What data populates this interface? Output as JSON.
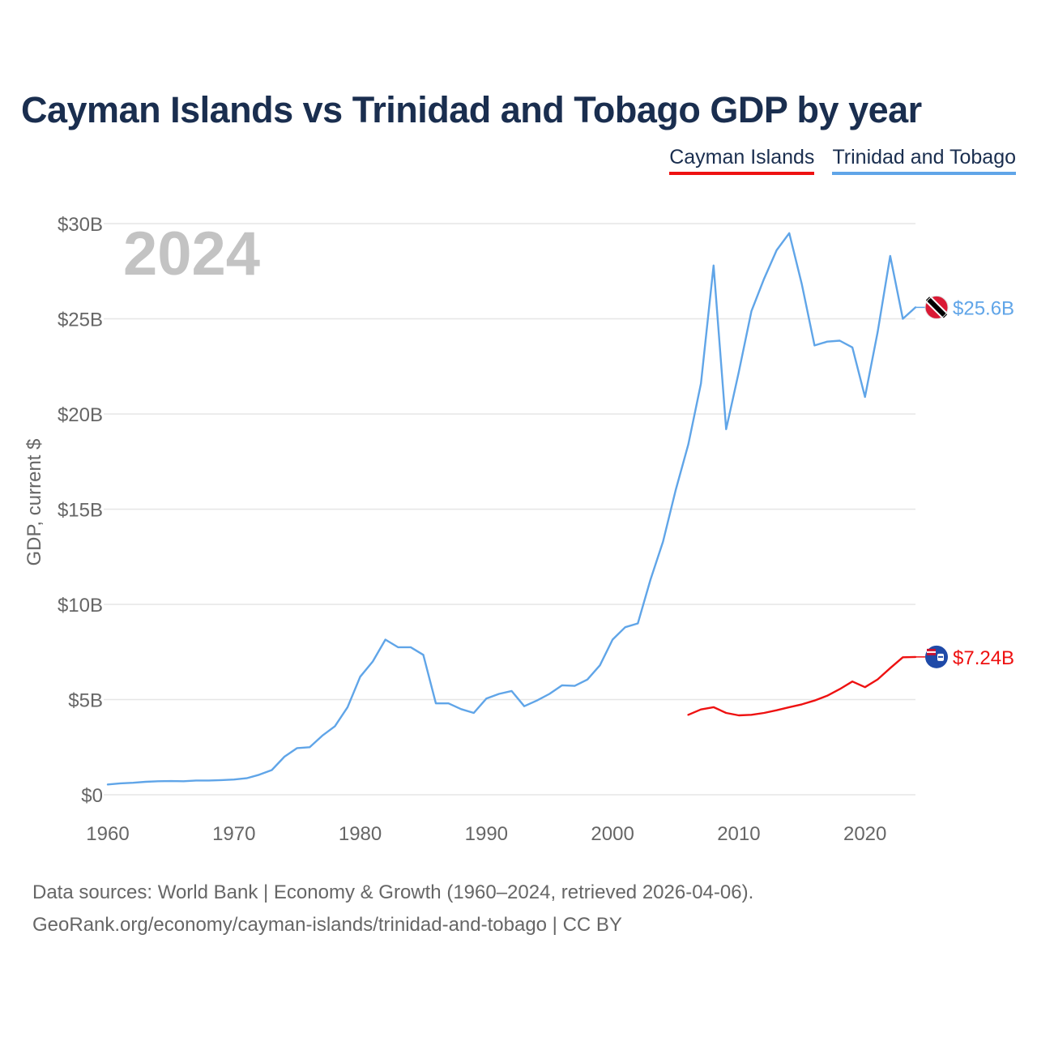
{
  "title": "Cayman Islands vs Trinidad and Tobago GDP by year",
  "legend": [
    {
      "label": "Cayman Islands",
      "color": "#ee1111"
    },
    {
      "label": "Trinidad and Tobago",
      "color": "#60a5e8"
    }
  ],
  "year_overlay": "2024",
  "source_line1": "Data sources: World Bank | Economy & Growth (1960–2024, retrieved 2026-04-06).",
  "source_line2": "GeoRank.org/economy/cayman-islands/trinidad-and-tobago | CC BY",
  "chart_data": {
    "type": "line",
    "title": "Cayman Islands vs Trinidad and Tobago GDP by year",
    "xlabel": "",
    "ylabel": "GDP, current $",
    "xlim": [
      1960,
      2024
    ],
    "ylim": [
      0,
      30
    ],
    "y_unit": "billion USD",
    "xticks": [
      1960,
      1970,
      1980,
      1990,
      2000,
      2010,
      2020
    ],
    "yticks": [
      0,
      5,
      10,
      15,
      20,
      25,
      30
    ],
    "ytick_labels": [
      "$0",
      "$5B",
      "$10B",
      "$15B",
      "$20B",
      "$25B",
      "$30B"
    ],
    "grid": true,
    "legend_position": "top-right",
    "series": [
      {
        "name": "Trinidad and Tobago",
        "color": "#60a5e8",
        "end_label": "$25.6B",
        "x": [
          1960,
          1961,
          1962,
          1963,
          1964,
          1965,
          1966,
          1967,
          1968,
          1969,
          1970,
          1971,
          1972,
          1973,
          1974,
          1975,
          1976,
          1977,
          1978,
          1979,
          1980,
          1981,
          1982,
          1983,
          1984,
          1985,
          1986,
          1987,
          1988,
          1989,
          1990,
          1991,
          1992,
          1993,
          1994,
          1995,
          1996,
          1997,
          1998,
          1999,
          2000,
          2001,
          2002,
          2003,
          2004,
          2005,
          2006,
          2007,
          2008,
          2009,
          2010,
          2011,
          2012,
          2013,
          2014,
          2015,
          2016,
          2017,
          2018,
          2019,
          2020,
          2021,
          2022,
          2023,
          2024
        ],
        "values": [
          0.54,
          0.6,
          0.63,
          0.68,
          0.71,
          0.72,
          0.71,
          0.75,
          0.75,
          0.77,
          0.8,
          0.87,
          1.05,
          1.3,
          2.0,
          2.45,
          2.5,
          3.1,
          3.6,
          4.6,
          6.2,
          7.0,
          8.15,
          7.75,
          7.75,
          7.35,
          4.8,
          4.8,
          4.5,
          4.3,
          5.05,
          5.3,
          5.45,
          4.65,
          4.95,
          5.3,
          5.75,
          5.72,
          6.05,
          6.8,
          8.15,
          8.8,
          9.0,
          11.3,
          13.3,
          16.0,
          18.4,
          21.6,
          27.8,
          19.2,
          22.2,
          25.4,
          27.1,
          28.6,
          29.5,
          26.8,
          23.6,
          23.8,
          23.85,
          23.5,
          20.9,
          24.3,
          28.3,
          25.0,
          25.6
        ]
      },
      {
        "name": "Cayman Islands",
        "color": "#ee1111",
        "end_label": "$7.24B",
        "x": [
          2006,
          2007,
          2008,
          2009,
          2010,
          2011,
          2012,
          2013,
          2014,
          2015,
          2016,
          2017,
          2018,
          2019,
          2020,
          2021,
          2022,
          2023,
          2024
        ],
        "values": [
          4.2,
          4.48,
          4.6,
          4.3,
          4.17,
          4.2,
          4.3,
          4.44,
          4.6,
          4.75,
          4.95,
          5.2,
          5.55,
          5.95,
          5.65,
          6.06,
          6.65,
          7.22,
          7.24
        ]
      }
    ]
  }
}
